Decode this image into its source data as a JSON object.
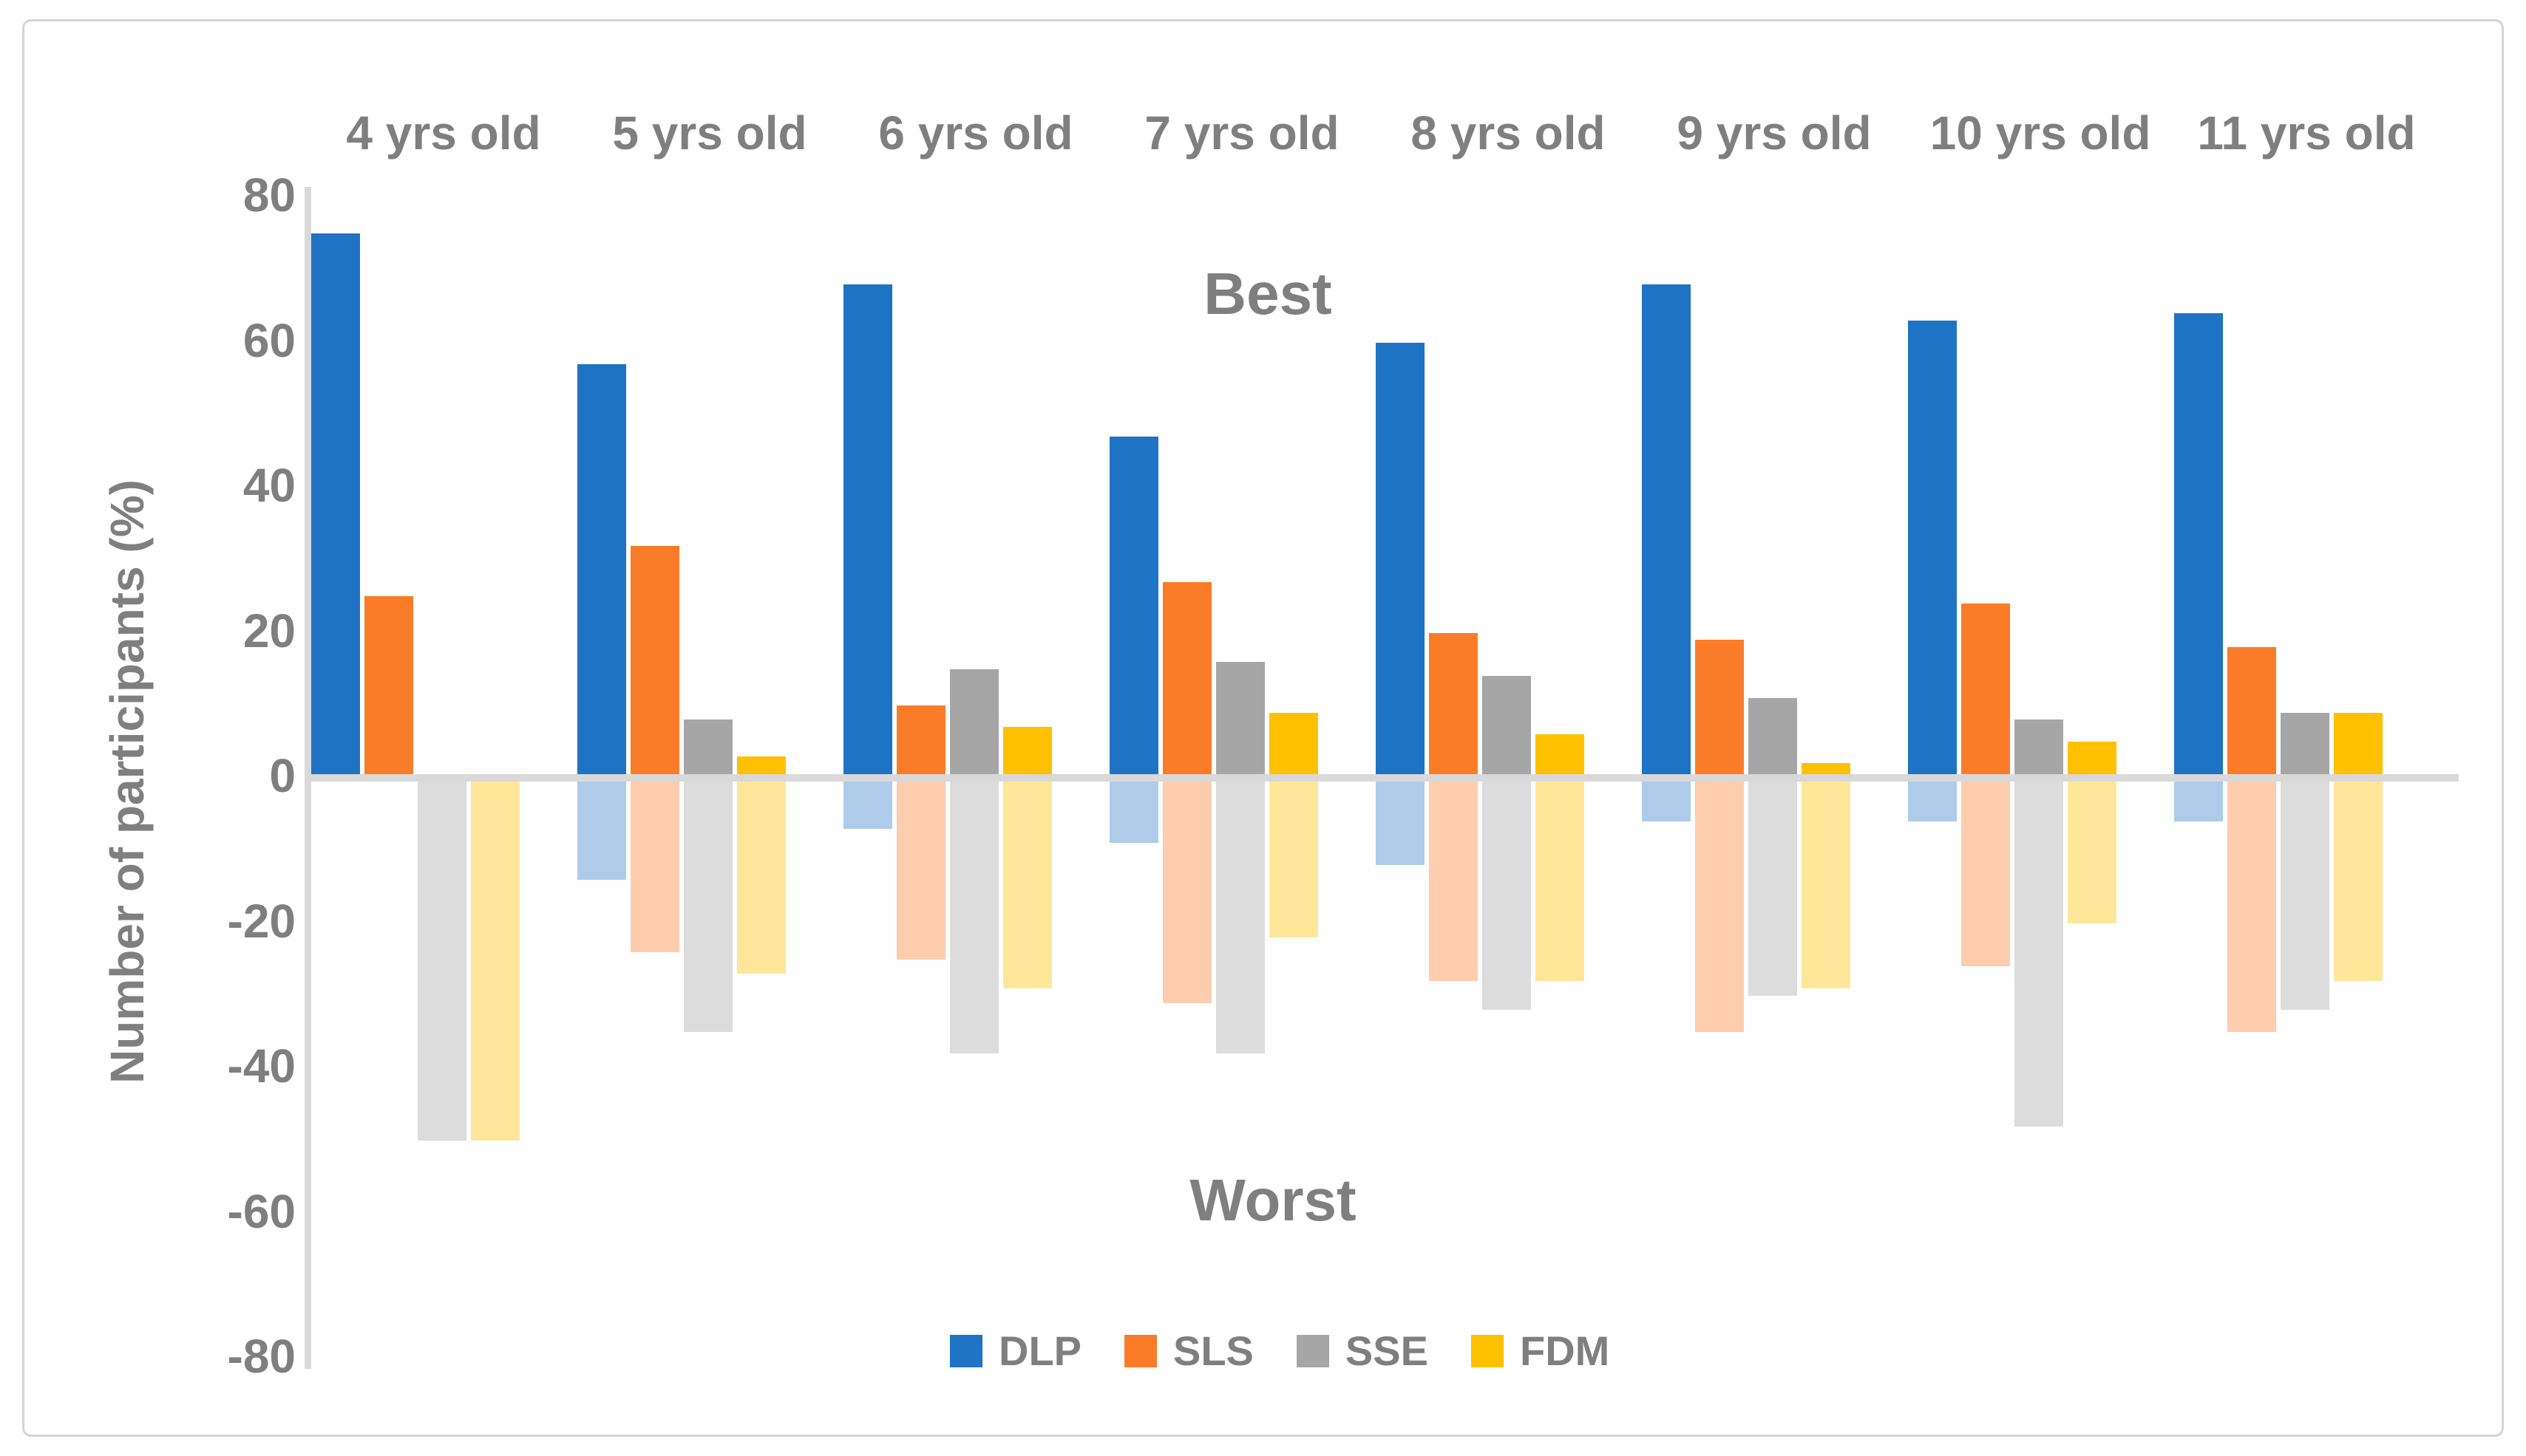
{
  "chart_data": {
    "type": "bar",
    "title": "",
    "ylabel": "Number of participants (%)",
    "xlabel": "",
    "ylim": [
      -80,
      80
    ],
    "ytick_step": 20,
    "yticks": [
      "80",
      "60",
      "40",
      "20",
      "0",
      "-20",
      "-40",
      "-60",
      "-80"
    ],
    "ytick_values": [
      80,
      60,
      40,
      20,
      0,
      -20,
      -40,
      -60,
      -80
    ],
    "grid": "zero-line-only",
    "legend_position": "bottom-center",
    "categories": [
      "4 yrs old",
      "5 yrs old",
      "6 yrs old",
      "7 yrs old",
      "8 yrs old",
      "9 yrs old",
      "10 yrs old",
      "11 yrs old"
    ],
    "annotations": {
      "positive_region": "Best",
      "negative_region": "Worst"
    },
    "series": [
      {
        "name": "DLP",
        "color": "#1e73c4",
        "light_color": "#aecbea",
        "best": [
          75,
          57,
          68,
          47,
          60,
          68,
          63,
          64
        ],
        "worst": [
          0,
          -14,
          -7,
          -9,
          -12,
          -6,
          -6,
          -6
        ]
      },
      {
        "name": "SLS",
        "color": "#fb7c28",
        "light_color": "#fdcdae",
        "best": [
          25,
          32,
          10,
          27,
          20,
          19,
          24,
          18
        ],
        "worst": [
          0,
          -24,
          -25,
          -31,
          -28,
          -35,
          -26,
          -35
        ]
      },
      {
        "name": "SSE",
        "color": "#a6a6a6",
        "light_color": "#dcdcdc",
        "best": [
          0,
          8,
          15,
          16,
          14,
          11,
          8,
          9
        ],
        "worst": [
          -50,
          -35,
          -38,
          -38,
          -32,
          -30,
          -48,
          -32
        ]
      },
      {
        "name": "FDM",
        "color": "#ffc000",
        "light_color": "#ffe699",
        "best": [
          0,
          3,
          7,
          9,
          6,
          2,
          5,
          9
        ],
        "worst": [
          -50,
          -27,
          -29,
          -22,
          -28,
          -29,
          -20,
          -28
        ]
      }
    ],
    "style_colors": {
      "axis_line": "#d9d9d9",
      "zero_line": "#d9d9d9",
      "text": "#7f7f7f",
      "frame_border": "#d4d4d4",
      "background": "#ffffff"
    }
  }
}
